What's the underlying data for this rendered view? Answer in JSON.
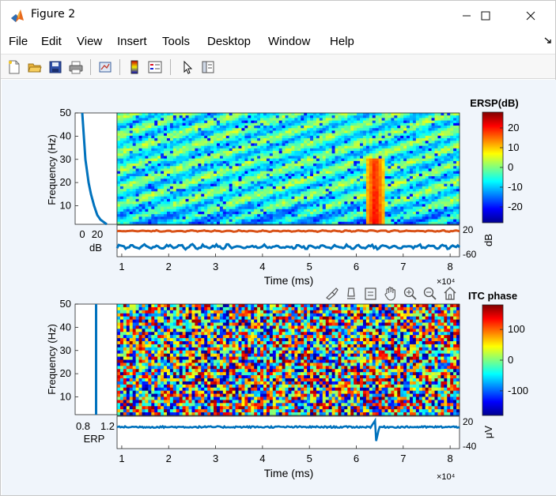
{
  "window": {
    "title": "Figure 2"
  },
  "menu": [
    "File",
    "Edit",
    "View",
    "Insert",
    "Tools",
    "Desktop",
    "Window",
    "Help"
  ],
  "toolbar": {
    "icons": [
      "new-file-icon",
      "open-folder-icon",
      "save-icon",
      "print-icon",
      "link-plot-icon",
      "colorbar-icon",
      "legend-icon",
      "pointer-icon",
      "property-inspector-icon"
    ]
  },
  "axes_toolbar": {
    "icons": [
      "brush-icon",
      "data-tips-icon",
      "restore-icon",
      "pan-icon",
      "zoom-in-icon",
      "zoom-out-icon",
      "home-icon"
    ]
  },
  "chart_data": [
    {
      "id": "ersp",
      "type": "heatmap",
      "title": "ERSP(dB)",
      "xlabel": "Time (ms)",
      "ylabel": "Frequency (Hz)",
      "xlim": [
        9000,
        82000
      ],
      "ylim": [
        2,
        50
      ],
      "x_ticks": [
        "1",
        "2",
        "3",
        "4",
        "5",
        "6",
        "7",
        "8"
      ],
      "x_exponent": "×10⁴",
      "y_ticks": [
        "10",
        "20",
        "30",
        "40",
        "50"
      ],
      "colorbar_ticks": [
        "20",
        "10",
        "0",
        "-10",
        "-20"
      ],
      "colorbar_range": [
        -28,
        28
      ],
      "colormap": "jet",
      "grid": false,
      "annotation": "power increase near 6.4×10⁴ ms below ~30 Hz",
      "side_panel": {
        "xlabel": "dB",
        "x_ticks": [
          "0",
          "20"
        ],
        "description": "baseline spectrum",
        "points": [
          [
            50,
            -1
          ],
          [
            45,
            0
          ],
          [
            40,
            1
          ],
          [
            35,
            2
          ],
          [
            30,
            3
          ],
          [
            25,
            5
          ],
          [
            20,
            7
          ],
          [
            15,
            10
          ],
          [
            10,
            14
          ],
          [
            6,
            18
          ],
          [
            4,
            22
          ],
          [
            3,
            26
          ],
          [
            2,
            30
          ]
        ]
      },
      "bottom_panel": {
        "ylabel": "dB",
        "y_ticks": [
          "20",
          "-60"
        ],
        "series": [
          {
            "name": "",
            "color": "#d95319",
            "level": 5
          },
          {
            "name": "",
            "color": "#0072bd",
            "level": -35
          }
        ]
      }
    },
    {
      "id": "itc",
      "type": "heatmap",
      "title": "ITC phase",
      "xlabel": "Time (ms)",
      "ylabel": "Frequency (Hz)",
      "xlim": [
        9000,
        82000
      ],
      "ylim": [
        2,
        50
      ],
      "x_ticks": [
        "1",
        "2",
        "3",
        "4",
        "5",
        "6",
        "7",
        "8"
      ],
      "x_exponent": "×10⁴",
      "y_ticks": [
        "10",
        "20",
        "30",
        "40",
        "50"
      ],
      "colorbar_ticks": [
        "100",
        "0",
        "-100"
      ],
      "colorbar_range": [
        -180,
        180
      ],
      "colormap": "jet",
      "grid": false,
      "side_panel": {
        "xlabel": "ERP",
        "x_ticks": [
          "0.8",
          "1.2"
        ],
        "value": 1.0
      },
      "bottom_panel": {
        "ylabel": "μV",
        "y_ticks": [
          "20",
          "-40"
        ],
        "series": [
          {
            "name": "",
            "color": "#0072bd",
            "spike_x": 64000,
            "spike_min": -35,
            "spike_max": 12
          }
        ]
      }
    }
  ]
}
